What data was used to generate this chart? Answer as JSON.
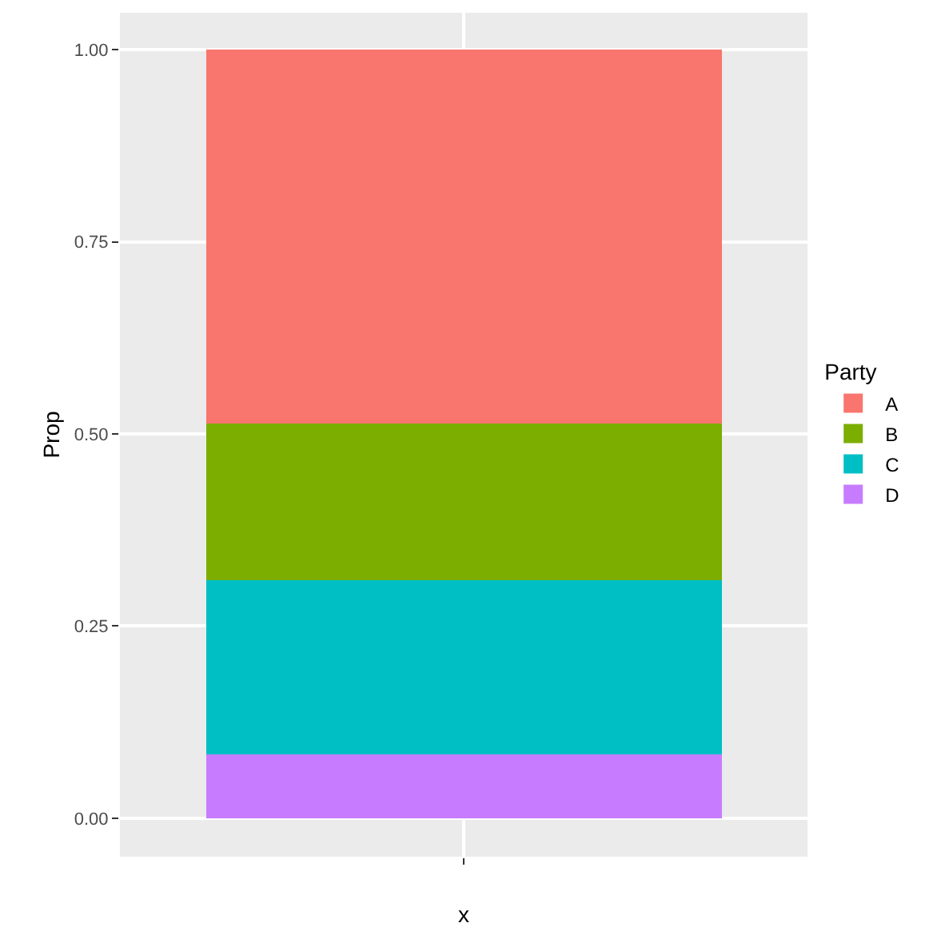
{
  "chart_data": {
    "type": "bar",
    "stacked": true,
    "xlabel": "x",
    "ylabel": "Prop",
    "legend_title": "Party",
    "legend": "right",
    "grid": true,
    "categories": [
      null
    ],
    "series": [
      {
        "name": "D",
        "color": "#c77cff",
        "values": [
          0.083
        ]
      },
      {
        "name": "C",
        "color": "#00bfc4",
        "values": [
          0.227
        ]
      },
      {
        "name": "B",
        "color": "#7cae00",
        "values": [
          0.204
        ]
      },
      {
        "name": "A",
        "color": "#f8766d",
        "values": [
          0.486
        ]
      }
    ],
    "ylim": [
      -0.05,
      1.048
    ],
    "yticks": [
      {
        "value": 0,
        "label": "0.00"
      },
      {
        "value": 0.25,
        "label": "0.25"
      },
      {
        "value": 0.5,
        "label": "0.50"
      },
      {
        "value": 0.75,
        "label": "0.75"
      },
      {
        "value": 1,
        "label": "1.00"
      }
    ]
  }
}
